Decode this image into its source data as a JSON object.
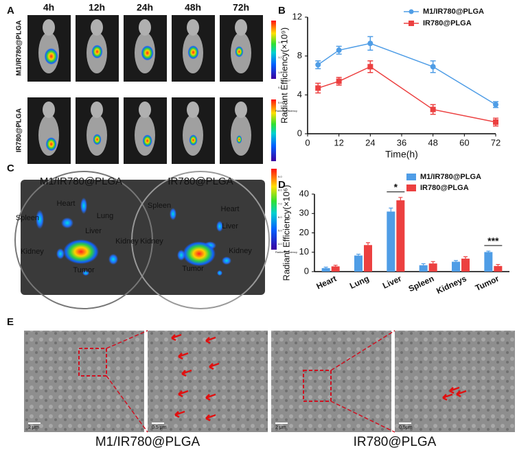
{
  "panel_labels": [
    "A",
    "B",
    "C",
    "D",
    "E"
  ],
  "panel_a": {
    "time_labels": [
      "4h",
      "12h",
      "24h",
      "48h",
      "72h"
    ],
    "row_labels": [
      "M1/IR780@PLGA",
      "IR780@PLGA"
    ],
    "colorbar_ticks": [
      "1.4",
      "1.2",
      "1.0",
      "0.8",
      "0.6"
    ],
    "colorbar_exponent": "x10⁹",
    "colorbar_label": "Radiant Efficiency"
  },
  "panel_c": {
    "dish_labels": [
      "M1/IR780@PLGA",
      "IR780@PLGA"
    ],
    "organ_labels": [
      "Heart",
      "Spleen",
      "Lung",
      "Liver",
      "Kidney",
      "Kidney",
      "Tumor",
      "Spleen",
      "Heart",
      "Liver",
      "Kidney",
      "Kidney",
      "Tumor"
    ],
    "colorbar_ticks": [
      "9.0",
      "8.0",
      "7.0",
      "6.0",
      "5.0",
      "4.0"
    ],
    "colorbar_exponent": "x10⁹",
    "colorbar_label": "Radiant Efficiency"
  },
  "panel_e": {
    "scale_bars": [
      "2 μm",
      "0.5 μm",
      "2 μm",
      "0.5μm"
    ],
    "captions": [
      "M1/IR780@PLGA",
      "IR780@PLGA"
    ]
  },
  "chart_data": [
    {
      "type": "line",
      "x_label": "Time(h)",
      "y_label": "Radiant Efficiency(×10⁹)",
      "x": [
        4,
        12,
        24,
        48,
        72
      ],
      "xlim": [
        0,
        72
      ],
      "xticks": [
        0,
        12,
        24,
        36,
        48,
        60,
        72
      ],
      "ylim": [
        0,
        12
      ],
      "yticks": [
        0,
        4,
        8,
        12
      ],
      "series": [
        {
          "name": "M1/IR780@PLGA",
          "color": "#4f9de6",
          "values": [
            7.1,
            8.6,
            9.3,
            6.9,
            3.0
          ],
          "errors": [
            0.4,
            0.4,
            0.7,
            0.6,
            0.3
          ]
        },
        {
          "name": "IR780@PLGA",
          "color": "#ec4040",
          "values": [
            4.7,
            5.4,
            6.9,
            2.5,
            1.2
          ],
          "errors": [
            0.5,
            0.4,
            0.6,
            0.5,
            0.4
          ]
        }
      ]
    },
    {
      "type": "bar",
      "y_label": "Radiant Efficiency(×10⁶)",
      "categories": [
        "Heart",
        "Lung",
        "Liver",
        "Spleen",
        "Kidneys",
        "Tumor"
      ],
      "ylim": [
        0,
        40
      ],
      "yticks": [
        0,
        10,
        20,
        30,
        40
      ],
      "series": [
        {
          "name": "M1/IR780@PLGA",
          "color": "#4f9de6",
          "values": [
            1.8,
            8.3,
            31,
            3.3,
            5.1,
            10.1
          ],
          "errors": [
            0.5,
            0.7,
            1.8,
            0.8,
            0.6,
            0.5
          ]
        },
        {
          "name": "IR780@PLGA",
          "color": "#ec4040",
          "values": [
            2.7,
            13.7,
            36.8,
            4.2,
            6.7,
            2.9
          ],
          "errors": [
            0.6,
            1.2,
            1.5,
            1.0,
            1.0,
            0.8
          ]
        }
      ],
      "annotations": [
        {
          "label": "*",
          "category": "Liver"
        },
        {
          "label": "***",
          "category": "Tumor"
        }
      ]
    }
  ]
}
